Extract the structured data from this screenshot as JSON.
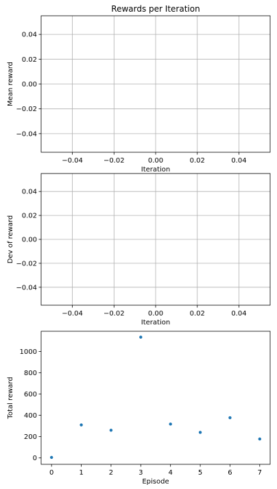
{
  "chart_data": [
    {
      "type": "line",
      "title": "Rewards per Iteration",
      "xlabel": "Iteration",
      "ylabel": "Mean reward",
      "x": [],
      "series": [
        {
          "values": []
        }
      ],
      "xlim": [
        -0.055,
        0.055
      ],
      "ylim": [
        -0.055,
        0.055
      ],
      "xticks": [
        -0.04,
        -0.02,
        0.0,
        0.02,
        0.04
      ],
      "xtick_labels": [
        "−0.04",
        "−0.02",
        "0.00",
        "0.02",
        "0.04"
      ],
      "yticks": [
        0.04,
        0.02,
        0.0,
        -0.02,
        -0.04
      ],
      "ytick_labels": [
        "0.04",
        "0.02",
        "0.00",
        "−0.02",
        "−0.04"
      ],
      "grid": true
    },
    {
      "type": "line",
      "title": "",
      "xlabel": "Iteration",
      "ylabel": "Dev of reward",
      "x": [],
      "series": [
        {
          "values": []
        }
      ],
      "xlim": [
        -0.055,
        0.055
      ],
      "ylim": [
        -0.055,
        0.055
      ],
      "xticks": [
        -0.04,
        -0.02,
        0.0,
        0.02,
        0.04
      ],
      "xtick_labels": [
        "−0.04",
        "−0.02",
        "0.00",
        "0.02",
        "0.04"
      ],
      "yticks": [
        0.04,
        0.02,
        0.0,
        -0.02,
        -0.04
      ],
      "ytick_labels": [
        "0.04",
        "0.02",
        "0.00",
        "−0.02",
        "−0.04"
      ],
      "grid": true
    },
    {
      "type": "scatter",
      "title": "",
      "xlabel": "Episode",
      "ylabel": "Total reward",
      "x": [
        0,
        1,
        2,
        3,
        4,
        5,
        6,
        7
      ],
      "series": [
        {
          "values": [
            5,
            310,
            260,
            1135,
            318,
            240,
            378,
            178
          ]
        }
      ],
      "xlim": [
        -0.35,
        7.35
      ],
      "ylim": [
        -60,
        1190
      ],
      "xticks": [
        0,
        1,
        2,
        3,
        4,
        5,
        6,
        7
      ],
      "xtick_labels": [
        "0",
        "1",
        "2",
        "3",
        "4",
        "5",
        "6",
        "7"
      ],
      "yticks": [
        0,
        200,
        400,
        600,
        800,
        1000
      ],
      "ytick_labels": [
        "0",
        "200",
        "400",
        "600",
        "800",
        "1000"
      ],
      "grid": false,
      "marker_color": "#1f77b4"
    }
  ]
}
